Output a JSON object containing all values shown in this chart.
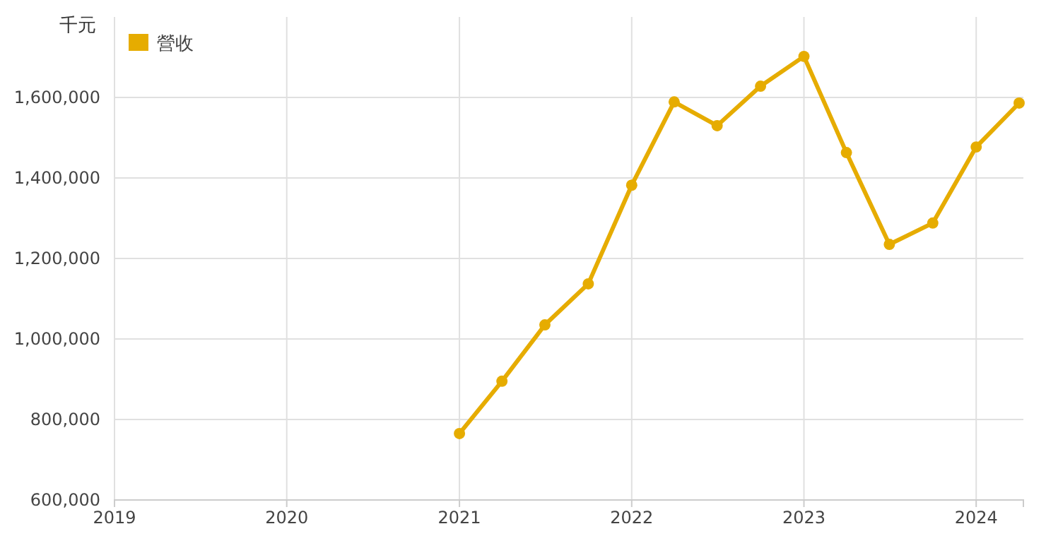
{
  "chart_data": {
    "type": "line",
    "ylabel": "千元",
    "x": [
      "2021-01",
      "2021-04",
      "2021-07",
      "2021-10",
      "2022-01",
      "2022-04",
      "2022-07",
      "2022-10",
      "2023-01",
      "2023-04",
      "2023-07",
      "2023-10",
      "2024-01",
      "2024-04"
    ],
    "series": [
      {
        "name": "營收",
        "color": "#e6ac00",
        "values": [
          765000,
          895000,
          1035000,
          1137000,
          1382000,
          1589000,
          1530000,
          1628000,
          1702000,
          1463000,
          1235000,
          1288000,
          1477000,
          1586000
        ]
      }
    ],
    "xlim": [
      "2019-01-01",
      "2024-04-10"
    ],
    "xticks": [
      {
        "value": "2019",
        "label": "2019"
      },
      {
        "value": "2020",
        "label": "2020"
      },
      {
        "value": "2021",
        "label": "2021"
      },
      {
        "value": "2022",
        "label": "2022"
      },
      {
        "value": "2023",
        "label": "2023"
      },
      {
        "value": "2024",
        "label": "2024"
      }
    ],
    "ylim": [
      600000,
      1800000
    ],
    "yticks": [
      {
        "value": 600000,
        "label": "600,000"
      },
      {
        "value": 800000,
        "label": "800,000"
      },
      {
        "value": 1000000,
        "label": "1,000,000"
      },
      {
        "value": 1200000,
        "label": "1,200,000"
      },
      {
        "value": 1400000,
        "label": "1,400,000"
      },
      {
        "value": 1600000,
        "label": "1,600,000"
      }
    ],
    "grid": true,
    "legend": "top left",
    "marker": "circle",
    "line_style": "solid"
  }
}
